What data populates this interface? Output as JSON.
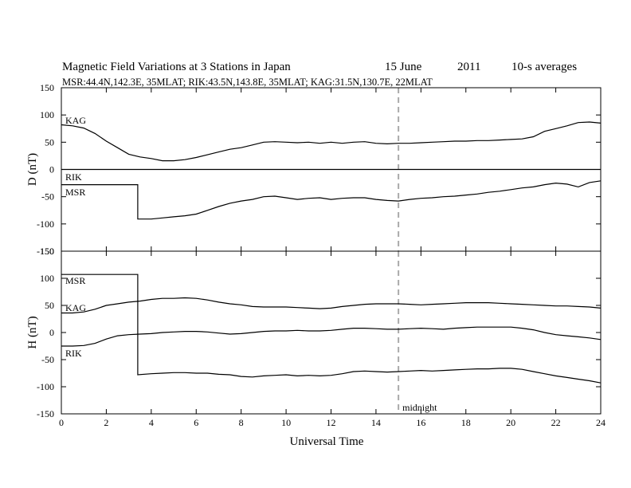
{
  "chart_data": [
    {
      "type": "line",
      "title": {
        "main": "Magnetic Field Variations at 3 Stations in Japan",
        "date": "15 June",
        "year": "2011",
        "averaging": "10-s averages"
      },
      "subtitle": "MSR:44.4N,142.3E, 35MLAT;  RIK:43.5N,143.8E, 35MLAT;  KAG:31.5N,130.7E, 22MLAT",
      "xlabel": "Universal Time",
      "ylabel": "D (nT)",
      "xlim": [
        0,
        24
      ],
      "ylim": [
        -150,
        150
      ],
      "x_ticks": [
        0,
        2,
        4,
        6,
        8,
        10,
        12,
        14,
        16,
        18,
        20,
        22,
        24
      ],
      "y_ticks": [
        -150,
        -100,
        -50,
        0,
        50,
        100,
        150
      ],
      "grid": false,
      "vline": {
        "x": 15,
        "style": "dashed",
        "color": "#aaaaaa"
      },
      "series": [
        {
          "name": "KAG",
          "x": [
            0,
            0.5,
            1,
            1.5,
            2,
            2.5,
            3,
            3.5,
            4,
            4.5,
            5,
            5.5,
            6,
            6.5,
            7,
            7.5,
            8,
            8.5,
            9,
            9.5,
            10,
            10.5,
            11,
            11.5,
            12,
            12.5,
            13,
            13.5,
            14,
            14.5,
            15,
            15.5,
            16,
            16.5,
            17,
            17.5,
            18,
            18.5,
            19,
            19.5,
            20,
            20.5,
            21,
            21.5,
            22,
            22.5,
            23,
            23.5,
            24
          ],
          "values": [
            82,
            80,
            76,
            66,
            52,
            40,
            28,
            23,
            20,
            16,
            16,
            18,
            22,
            27,
            32,
            37,
            40,
            45,
            50,
            51,
            50,
            49,
            50,
            48,
            50,
            48,
            50,
            51,
            48,
            47,
            48,
            48,
            49,
            50,
            51,
            52,
            52,
            53,
            53,
            54,
            55,
            56,
            60,
            70,
            75,
            80,
            86,
            87,
            85
          ]
        },
        {
          "name": "RIK",
          "x": [
            0,
            24
          ],
          "values": [
            0,
            0
          ]
        },
        {
          "name": "MSR",
          "x": [
            0,
            3.4,
            3.4,
            4,
            4.5,
            5,
            5.5,
            6,
            6.5,
            7,
            7.5,
            8,
            8.5,
            9,
            9.5,
            10,
            10.5,
            11,
            11.5,
            12,
            12.5,
            13,
            13.5,
            14,
            14.5,
            15,
            15.5,
            16,
            16.5,
            17,
            17.5,
            18,
            18.5,
            19,
            19.5,
            20,
            20.5,
            21,
            21.5,
            22,
            22.5,
            23,
            23.5,
            24
          ],
          "values": [
            -28,
            -28,
            -91,
            -91,
            -89,
            -87,
            -85,
            -82,
            -75,
            -68,
            -62,
            -58,
            -55,
            -50,
            -49,
            -52,
            -55,
            -53,
            -52,
            -55,
            -53,
            -52,
            -52,
            -55,
            -57,
            -58,
            -55,
            -53,
            -52,
            -50,
            -49,
            -47,
            -45,
            -42,
            -40,
            -37,
            -34,
            -32,
            -28,
            -25,
            -27,
            -32,
            -24,
            -21
          ]
        }
      ]
    },
    {
      "type": "line",
      "xlabel": "Universal Time",
      "ylabel": "H (nT)",
      "xlim": [
        0,
        24
      ],
      "ylim": [
        -150,
        150
      ],
      "x_ticks": [
        0,
        2,
        4,
        6,
        8,
        10,
        12,
        14,
        16,
        18,
        20,
        22,
        24
      ],
      "y_ticks": [
        -150,
        -100,
        -50,
        0,
        50,
        100,
        150
      ],
      "grid": false,
      "vline": {
        "x": 15,
        "style": "dashed",
        "color": "#aaaaaa",
        "label": "midnight"
      },
      "series": [
        {
          "name": "MSR",
          "x": [
            0,
            3.4,
            3.4,
            4,
            4.5,
            5,
            5.5,
            6,
            6.5,
            7,
            7.5,
            8,
            8.5,
            9,
            9.5,
            10,
            10.5,
            11,
            11.5,
            12,
            12.5,
            13,
            13.5,
            14,
            14.5,
            15,
            15.5,
            16,
            16.5,
            17,
            17.5,
            18,
            18.5,
            19,
            19.5,
            20,
            20.5,
            21,
            21.5,
            22,
            22.5,
            23,
            23.5,
            24
          ],
          "values": [
            107,
            107,
            -78,
            -76,
            -75,
            -74,
            -74,
            -75,
            -75,
            -77,
            -78,
            -81,
            -82,
            -80,
            -79,
            -78,
            -80,
            -79,
            -80,
            -79,
            -76,
            -72,
            -71,
            -72,
            -73,
            -72,
            -71,
            -70,
            -71,
            -70,
            -69,
            -68,
            -67,
            -67,
            -66,
            -66,
            -68,
            -72,
            -76,
            -80,
            -83,
            -86,
            -89,
            -93
          ]
        },
        {
          "name": "KAG",
          "x": [
            0,
            0.5,
            1,
            1.5,
            2,
            2.5,
            3,
            3.5,
            4,
            4.5,
            5,
            5.5,
            6,
            6.5,
            7,
            7.5,
            8,
            8.5,
            9,
            9.5,
            10,
            10.5,
            11,
            11.5,
            12,
            12.5,
            13,
            13.5,
            14,
            14.5,
            15,
            15.5,
            16,
            16.5,
            17,
            17.5,
            18,
            18.5,
            19,
            19.5,
            20,
            20.5,
            21,
            21.5,
            22,
            22.5,
            23,
            23.5,
            24
          ],
          "values": [
            36,
            36,
            38,
            43,
            50,
            53,
            56,
            58,
            61,
            63,
            63,
            64,
            63,
            60,
            56,
            53,
            51,
            48,
            47,
            47,
            47,
            46,
            45,
            44,
            45,
            48,
            50,
            52,
            53,
            53,
            53,
            52,
            51,
            52,
            53,
            54,
            55,
            55,
            55,
            54,
            53,
            52,
            51,
            50,
            49,
            49,
            48,
            47,
            45
          ]
        },
        {
          "name": "RIK",
          "x": [
            0,
            0.5,
            1,
            1.5,
            2,
            2.5,
            3,
            3.5,
            4,
            4.5,
            5,
            5.5,
            6,
            6.5,
            7,
            7.5,
            8,
            8.5,
            9,
            9.5,
            10,
            10.5,
            11,
            11.5,
            12,
            12.5,
            13,
            13.5,
            14,
            14.5,
            15,
            15.5,
            16,
            16.5,
            17,
            17.5,
            18,
            18.5,
            19,
            19.5,
            20,
            20.5,
            21,
            21.5,
            22,
            22.5,
            23,
            23.5,
            24
          ],
          "values": [
            -25,
            -25,
            -24,
            -20,
            -12,
            -6,
            -4,
            -3,
            -2,
            0,
            1,
            2,
            2,
            1,
            -1,
            -3,
            -2,
            0,
            2,
            3,
            3,
            4,
            3,
            3,
            4,
            6,
            8,
            8,
            7,
            6,
            6,
            7,
            8,
            7,
            6,
            8,
            9,
            10,
            10,
            10,
            10,
            8,
            5,
            0,
            -4,
            -6,
            -8,
            -10,
            -13
          ]
        }
      ]
    }
  ]
}
